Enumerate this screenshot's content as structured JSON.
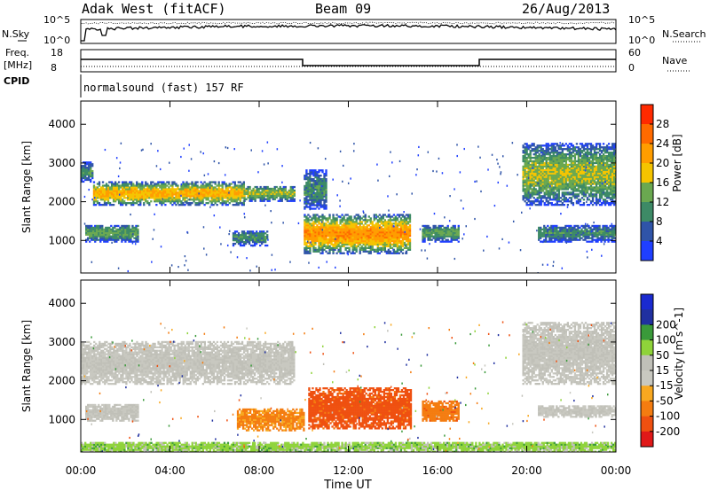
{
  "header": {
    "station": "Adak West (fitACF)",
    "beam": "Beam 09",
    "date": "26/Aug/2013"
  },
  "sky_panel": {
    "left_label": "N.Sky",
    "right_label": "N.Search",
    "left_ticks": [
      "10^5",
      "10^0"
    ],
    "right_ticks": [
      "10^5",
      "10^0"
    ]
  },
  "freq_panel": {
    "left_label_1": "Freq.",
    "left_label_2": "[MHz]",
    "left_ticks": [
      "18",
      "8"
    ],
    "right_label": "Nave",
    "right_ticks": [
      "60",
      "0"
    ]
  },
  "cpid": {
    "label": "CPID",
    "text": "normalsound (fast) 157 RF"
  },
  "x_axis": {
    "label": "Time UT",
    "ticks": [
      "00:00",
      "04:00",
      "08:00",
      "12:00",
      "16:00",
      "20:00",
      "00:00"
    ]
  },
  "colors": {
    "power_scale": [
      "#1f3fff",
      "#2f54a8",
      "#3d8a66",
      "#6aa850",
      "#f5c400",
      "#ff9d00",
      "#ff6a00",
      "#ff2a00"
    ],
    "velocity_scale": [
      "#e01818",
      "#ef5010",
      "#f47c10",
      "#f8a820",
      "#c8c8c0",
      "#c0c0b8",
      "#8fd33a",
      "#3a9a3a",
      "#2030a0",
      "#1a2ad0"
    ]
  },
  "chart_data": [
    {
      "type": "heatmap",
      "title": "Power",
      "ylabel": "Slant Range [km]",
      "xlabel": "",
      "y_ticks": [
        1000,
        2000,
        3000,
        4000
      ],
      "colorbar": {
        "label": "Power [dB]",
        "ticks": [
          "4",
          "8",
          "12",
          "16",
          "20",
          "24",
          "28"
        ]
      },
      "regions": [
        {
          "t0": 0.0,
          "t1": 0.55,
          "r0": 2500,
          "r1": 3000,
          "v": 10
        },
        {
          "t0": 0.55,
          "t1": 7.3,
          "r0": 1900,
          "r1": 2500,
          "v": 18
        },
        {
          "t0": 7.3,
          "t1": 9.6,
          "r0": 2000,
          "r1": 2400,
          "v": 14
        },
        {
          "t0": 0.2,
          "t1": 2.6,
          "r0": 950,
          "r1": 1400,
          "v": 12
        },
        {
          "t0": 6.8,
          "t1": 8.4,
          "r0": 850,
          "r1": 1250,
          "v": 10
        },
        {
          "t0": 10.0,
          "t1": 14.8,
          "r0": 650,
          "r1": 1650,
          "v": 20
        },
        {
          "t0": 15.3,
          "t1": 16.9,
          "r0": 950,
          "r1": 1400,
          "v": 12
        },
        {
          "t0": 10.0,
          "t1": 11.0,
          "r0": 1800,
          "r1": 2800,
          "v": 10
        },
        {
          "t0": 19.8,
          "t1": 24.0,
          "r0": 1900,
          "r1": 3500,
          "v": 14
        },
        {
          "t0": 20.5,
          "t1": 24.0,
          "r0": 950,
          "r1": 1400,
          "v": 10
        }
      ]
    },
    {
      "type": "heatmap",
      "title": "Velocity",
      "ylabel": "Slant Range [km]",
      "xlabel": "Time UT",
      "y_ticks": [
        1000,
        2000,
        3000,
        4000
      ],
      "colorbar": {
        "label": "Velocity [m s^-1]",
        "ticks": [
          "-200",
          "-100",
          "-50",
          "-15",
          "15",
          "50",
          "100",
          "200"
        ]
      },
      "regions": [
        {
          "t0": 0.0,
          "t1": 9.6,
          "r0": 1900,
          "r1": 3000,
          "v": 0
        },
        {
          "t0": 0.2,
          "t1": 2.6,
          "r0": 950,
          "r1": 1400,
          "v": 0
        },
        {
          "t0": 7.0,
          "t1": 10.0,
          "r0": 700,
          "r1": 1250,
          "v": -60
        },
        {
          "t0": 10.2,
          "t1": 14.8,
          "r0": 750,
          "r1": 1800,
          "v": -120
        },
        {
          "t0": 15.3,
          "t1": 16.9,
          "r0": 950,
          "r1": 1450,
          "v": -80
        },
        {
          "t0": 19.8,
          "t1": 24.0,
          "r0": 1900,
          "r1": 3500,
          "v": 0
        },
        {
          "t0": 20.5,
          "t1": 24.0,
          "r0": 1050,
          "r1": 1350,
          "v": 0
        },
        {
          "t0": 0.0,
          "t1": 24.0,
          "r0": 150,
          "r1": 400,
          "v": 30
        }
      ]
    }
  ]
}
